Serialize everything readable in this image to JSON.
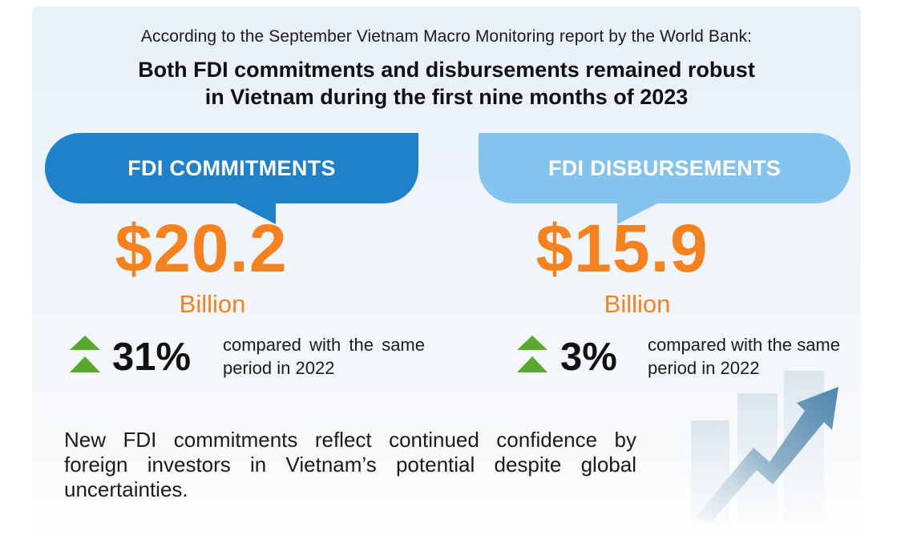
{
  "source_line": "According to the September Vietnam Macro Monitoring report by the World Bank:",
  "headline": {
    "line1": "Both FDI commitments and disbursements remained robust",
    "line2": "in Vietnam during the first nine months of 2023"
  },
  "commitments": {
    "label": "FDI COMMITMENTS",
    "amount": "$20.2",
    "unit": "Billion",
    "change": "31%",
    "comparison": "compared with the same period in 2022",
    "color": "#1f82c9"
  },
  "disbursements": {
    "label": "FDI DISBURSEMENTS",
    "amount": "$15.9",
    "unit": "Billion",
    "change": "3%",
    "comparison": "compared with the same period in 2022",
    "color": "#83c3ee"
  },
  "note": "New FDI commitments reflect continued confidence by foreign investors in Vietnam’s potential despite global uncertainties.",
  "colors": {
    "amount": "#f5821f",
    "up_arrow": "#5aa82d"
  },
  "icons": {
    "up": "double-up-triangle-icon",
    "growth": "growth-bar-arrow-icon"
  }
}
